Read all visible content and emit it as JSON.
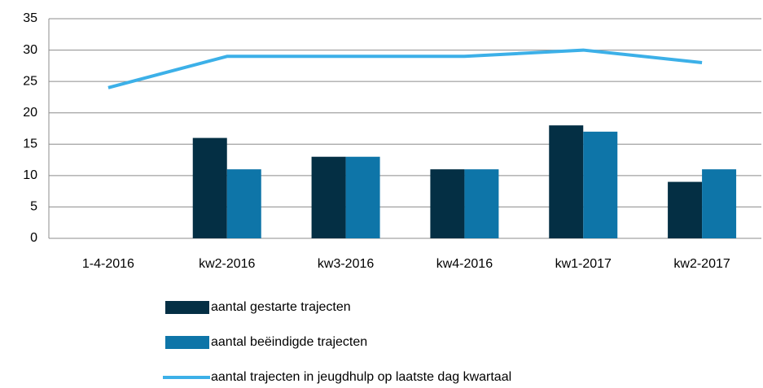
{
  "chart_data": {
    "type": "bar",
    "categories": [
      "1-4-2016",
      "kw2-2016",
      "kw3-2016",
      "kw4-2016",
      "kw1-2017",
      "kw2-2017"
    ],
    "series": [
      {
        "name": "aantal gestarte trajecten",
        "type": "bar",
        "color": "#042f44",
        "values": [
          null,
          16,
          13,
          11,
          18,
          9
        ]
      },
      {
        "name": "aantal beëindigde trajecten",
        "type": "bar",
        "color": "#0e75a8",
        "values": [
          null,
          11,
          13,
          11,
          17,
          11
        ]
      },
      {
        "name": "aantal trajecten in jeugdhulp op laatste dag kwartaal",
        "type": "line",
        "color": "#3cb0e8",
        "values": [
          24,
          29,
          29,
          29,
          30,
          28
        ]
      }
    ],
    "ylim": [
      0,
      35
    ],
    "yticks": [
      0,
      5,
      10,
      15,
      20,
      25,
      30,
      35
    ],
    "grid": true
  }
}
